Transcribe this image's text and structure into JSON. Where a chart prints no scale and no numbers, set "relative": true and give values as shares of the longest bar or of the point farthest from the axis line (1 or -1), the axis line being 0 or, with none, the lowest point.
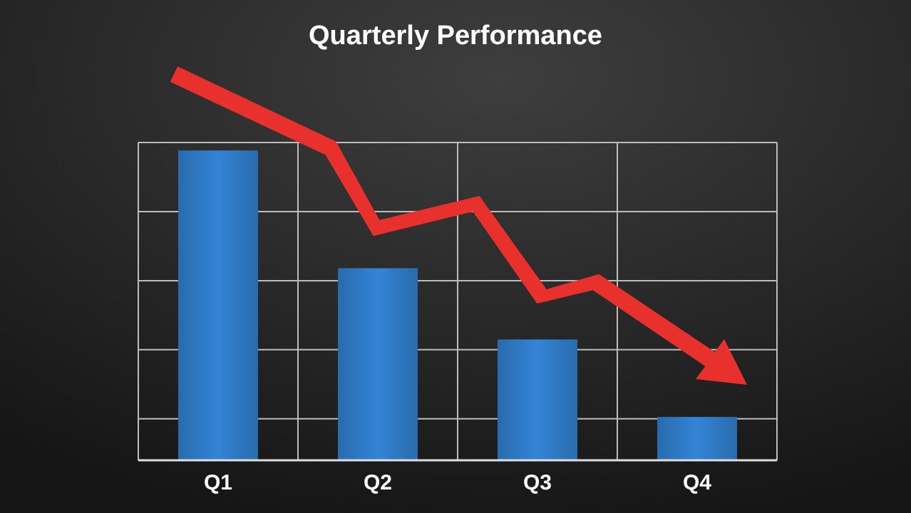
{
  "chart_data": {
    "type": "bar",
    "title": "Quarterly Performance",
    "categories": [
      "Q1",
      "Q2",
      "Q3",
      "Q4"
    ],
    "values": [
      1,
      0.62,
      0.39,
      0.14
    ],
    "color": "#3384d6",
    "relative": true,
    "grid": true
  }
}
